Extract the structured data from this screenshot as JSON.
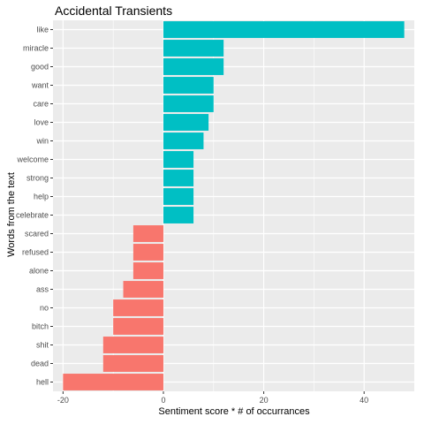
{
  "chart_data": {
    "type": "bar",
    "orientation": "horizontal",
    "title": "Accidental Transients",
    "xlabel": "Sentiment score * # of occurrances",
    "ylabel": "Words from the text",
    "categories": [
      "like",
      "miracle",
      "good",
      "want",
      "care",
      "love",
      "win",
      "welcome",
      "strong",
      "help",
      "celebrate",
      "scared",
      "refused",
      "alone",
      "ass",
      "no",
      "bitch",
      "shit",
      "dead",
      "hell"
    ],
    "values": [
      48,
      12,
      12,
      10,
      10,
      9,
      8,
      6,
      6,
      6,
      6,
      -6,
      -6,
      -6,
      -8,
      -10,
      -10,
      -12,
      -12,
      -20
    ],
    "xlim": [
      -22,
      50
    ],
    "xticks": [
      -20,
      0,
      20,
      40
    ],
    "grid": true,
    "colors": {
      "positive": "#00BFC4",
      "negative": "#F8766D",
      "panel": "#EBEBEB",
      "grid": "#FFFFFF",
      "tick_text": "#4D4D4D"
    }
  }
}
